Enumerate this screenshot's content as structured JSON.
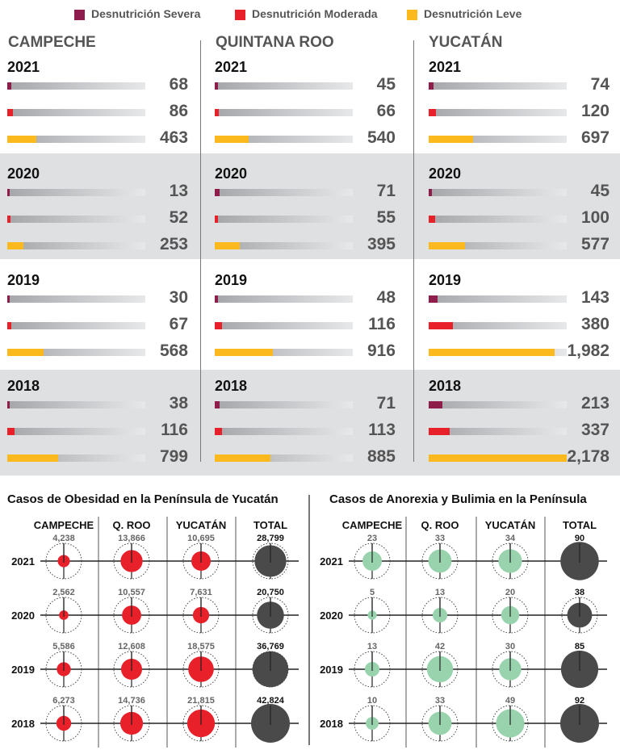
{
  "legend": [
    {
      "label": "Desnutrición Severa",
      "color": "#8e1d4b"
    },
    {
      "label": "Desnutrición Moderada",
      "color": "#e8202a"
    },
    {
      "label": "Desnutrición Leve",
      "color": "#fbb91d"
    }
  ],
  "malnutrition": {
    "max_value": 2178,
    "states": [
      {
        "name": "CAMPECHE",
        "years": [
          {
            "year": "2021",
            "values": [
              68,
              86,
              463
            ],
            "labels": [
              "68",
              "86",
              "463"
            ]
          },
          {
            "year": "2020",
            "values": [
              13,
              52,
              253
            ],
            "labels": [
              "13",
              "52",
              "253"
            ]
          },
          {
            "year": "2019",
            "values": [
              30,
              67,
              568
            ],
            "labels": [
              "30",
              "67",
              "568"
            ]
          },
          {
            "year": "2018",
            "values": [
              38,
              116,
              799
            ],
            "labels": [
              "38",
              "116",
              "799"
            ]
          }
        ]
      },
      {
        "name": "QUINTANA ROO",
        "years": [
          {
            "year": "2021",
            "values": [
              45,
              66,
              540
            ],
            "labels": [
              "45",
              "66",
              "540"
            ]
          },
          {
            "year": "2020",
            "values": [
              71,
              55,
              395
            ],
            "labels": [
              "71",
              "55",
              "395"
            ]
          },
          {
            "year": "2019",
            "values": [
              48,
              116,
              916
            ],
            "labels": [
              "48",
              "116",
              "916"
            ]
          },
          {
            "year": "2018",
            "values": [
              71,
              113,
              885
            ],
            "labels": [
              "71",
              "113",
              "885"
            ]
          }
        ]
      },
      {
        "name": "YUCATÁN",
        "years": [
          {
            "year": "2021",
            "values": [
              74,
              120,
              697
            ],
            "labels": [
              "74",
              "120",
              "697"
            ]
          },
          {
            "year": "2020",
            "values": [
              45,
              100,
              577
            ],
            "labels": [
              "45",
              "100",
              "577"
            ]
          },
          {
            "year": "2019",
            "values": [
              143,
              380,
              1982
            ],
            "labels": [
              "143",
              "380",
              "1,982"
            ]
          },
          {
            "year": "2018",
            "values": [
              213,
              337,
              2178
            ],
            "labels": [
              "213",
              "337",
              "2,178"
            ]
          }
        ]
      }
    ]
  },
  "chart_data": [
    {
      "type": "bar",
      "title": "",
      "categories": [
        "2021",
        "2020",
        "2019",
        "2018"
      ],
      "groups": [
        "CAMPECHE",
        "QUINTANA ROO",
        "YUCATÁN"
      ],
      "series": [
        {
          "name": "Desnutrición Severa",
          "values": {
            "CAMPECHE": [
              68,
              13,
              30,
              38
            ],
            "QUINTANA ROO": [
              45,
              71,
              48,
              71
            ],
            "YUCATÁN": [
              74,
              45,
              143,
              213
            ]
          }
        },
        {
          "name": "Desnutrición Moderada",
          "values": {
            "CAMPECHE": [
              86,
              52,
              67,
              116
            ],
            "QUINTANA ROO": [
              66,
              55,
              116,
              113
            ],
            "YUCATÁN": [
              120,
              100,
              380,
              337
            ]
          }
        },
        {
          "name": "Desnutrición Leve",
          "values": {
            "CAMPECHE": [
              463,
              253,
              568,
              799
            ],
            "QUINTANA ROO": [
              540,
              395,
              916,
              885
            ],
            "YUCATÁN": [
              697,
              577,
              1982,
              2178
            ]
          }
        }
      ]
    },
    {
      "type": "scatter",
      "title": "Casos de Obesidad en la Península de Yucatán",
      "columns": [
        "CAMPECHE",
        "Q. ROO",
        "YUCATÁN",
        "TOTAL"
      ],
      "rows": [
        "2021",
        "2020",
        "2019",
        "2018"
      ],
      "values": [
        [
          4238,
          13866,
          10695,
          28799
        ],
        [
          2562,
          10557,
          7631,
          20750
        ],
        [
          5586,
          12608,
          18575,
          36769
        ],
        [
          6273,
          14736,
          21815,
          42824
        ]
      ],
      "labels": [
        [
          "4,238",
          "13,866",
          "10,695",
          "28,799"
        ],
        [
          "2,562",
          "10,557",
          "7,631",
          "20,750"
        ],
        [
          "5,586",
          "12,608",
          "18,575",
          "36,769"
        ],
        [
          "6,273",
          "14,736",
          "21,815",
          "42,824"
        ]
      ],
      "colors": {
        "region": "#e8202a",
        "total": "#4a4a4a"
      }
    },
    {
      "type": "scatter",
      "title": "Casos de Anorexia y Bulimia en la Península",
      "columns": [
        "CAMPECHE",
        "Q. ROO",
        "YUCATÁN",
        "TOTAL"
      ],
      "rows": [
        "2021",
        "2020",
        "2019",
        "2018"
      ],
      "values": [
        [
          23,
          33,
          34,
          90
        ],
        [
          5,
          13,
          20,
          38
        ],
        [
          13,
          42,
          30,
          85
        ],
        [
          10,
          33,
          49,
          92
        ]
      ],
      "labels": [
        [
          "23",
          "33",
          "34",
          "90"
        ],
        [
          "5",
          "13",
          "20",
          "38"
        ],
        [
          "13",
          "42",
          "30",
          "85"
        ],
        [
          "10",
          "33",
          "49",
          "92"
        ]
      ],
      "colors": {
        "region": "#98d3ad",
        "total": "#4a4a4a"
      }
    }
  ]
}
